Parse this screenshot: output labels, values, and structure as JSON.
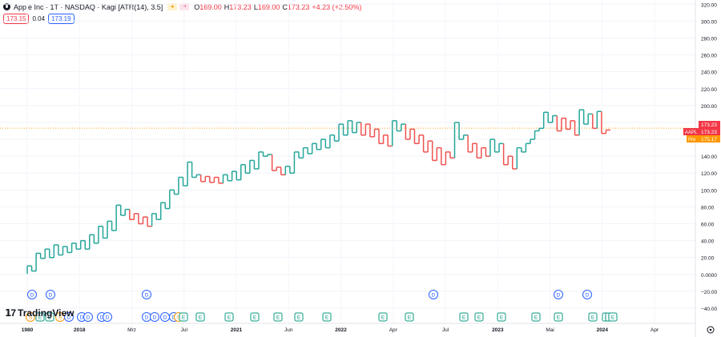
{
  "legend": {
    "title": "Apple Inc · 1T · NASDAQ · Kagi [ATR(14), 3.5]",
    "open_label": "O",
    "open": "169.00",
    "high_label": "H",
    "high": "173.23",
    "low_label": "L",
    "low": "169.00",
    "close_label": "C",
    "close": "173.23",
    "change": "+4.23 (+2.50%)",
    "bid": "173.15",
    "spread": "0.04",
    "ask": "173.19"
  },
  "price_tags": {
    "symbol": "AAPL",
    "last": "173.23",
    "last_dup": "173.23",
    "pre_label": "Pre",
    "pre": "175.17"
  },
  "watermark": "TradingView",
  "settings_icon": "gear-icon",
  "colors": {
    "up": "#26a69a",
    "down": "#ef5350",
    "price_line": "#f7a21b",
    "dividend": "#2962ff",
    "earnings": "#089981",
    "split": "#ff9800"
  },
  "chart_data": {
    "type": "line",
    "style": "kagi",
    "y_axis": {
      "range": [
        -58,
        325
      ],
      "ticks": [
        "320.00",
        "300.00",
        "280.00",
        "260.00",
        "240.00",
        "220.00",
        "200.00",
        "180.00",
        "160.00",
        "140.00",
        "120.00",
        "100.00",
        "80.00",
        "60.00",
        "40.00",
        "20.00",
        "0.0000",
        "−20.00",
        "−40.00"
      ]
    },
    "x_axis": {
      "ticks": [
        "1980",
        "2018",
        "Mrz",
        "Jul",
        "2021",
        "Jun",
        "2022",
        "Apr",
        "Jul",
        "2023",
        "Mai",
        "2024",
        "Apr"
      ]
    },
    "last_price": 173.23,
    "kagi_reversals": [
      0.5,
      10,
      4,
      25,
      19,
      30,
      20,
      35,
      23,
      33,
      26,
      37,
      30,
      40,
      30,
      47,
      37,
      57,
      43,
      63,
      52,
      82,
      70,
      77,
      65,
      72,
      60,
      68,
      57,
      72,
      65,
      85,
      78,
      100,
      95,
      115,
      105,
      133,
      115,
      118,
      110,
      116,
      109,
      115,
      108,
      118,
      111,
      122,
      112,
      130,
      120,
      135,
      125,
      145,
      140,
      142,
      123,
      127,
      118,
      128,
      120,
      145,
      138,
      150,
      143,
      155,
      148,
      160,
      150,
      165,
      158,
      178,
      165,
      182,
      168,
      180,
      165,
      178,
      163,
      172,
      155,
      165,
      152,
      182,
      170,
      178,
      160,
      172,
      155,
      165,
      145,
      158,
      135,
      150,
      130,
      145,
      138,
      180,
      160,
      165,
      145,
      155,
      138,
      150,
      140,
      160,
      145,
      155,
      130,
      140,
      125,
      150,
      145,
      155,
      160,
      170,
      173,
      192,
      180,
      188,
      170,
      185,
      172,
      182,
      165,
      195,
      178,
      190,
      173,
      193,
      167,
      171
    ],
    "event_markers": {
      "dividends_top": [
        "D",
        "D",
        "D",
        "D",
        "D",
        "D"
      ],
      "bottom_row": [
        "S",
        "E",
        "E",
        "S",
        "D",
        "D",
        "D",
        "D",
        "D",
        "D",
        "D",
        "D",
        "D",
        "S",
        "E",
        "E",
        "E",
        "E",
        "E",
        "E",
        "E",
        "E",
        "E",
        "E",
        "E",
        "E",
        "E",
        "E",
        "E",
        "E",
        "E",
        "E"
      ]
    }
  }
}
